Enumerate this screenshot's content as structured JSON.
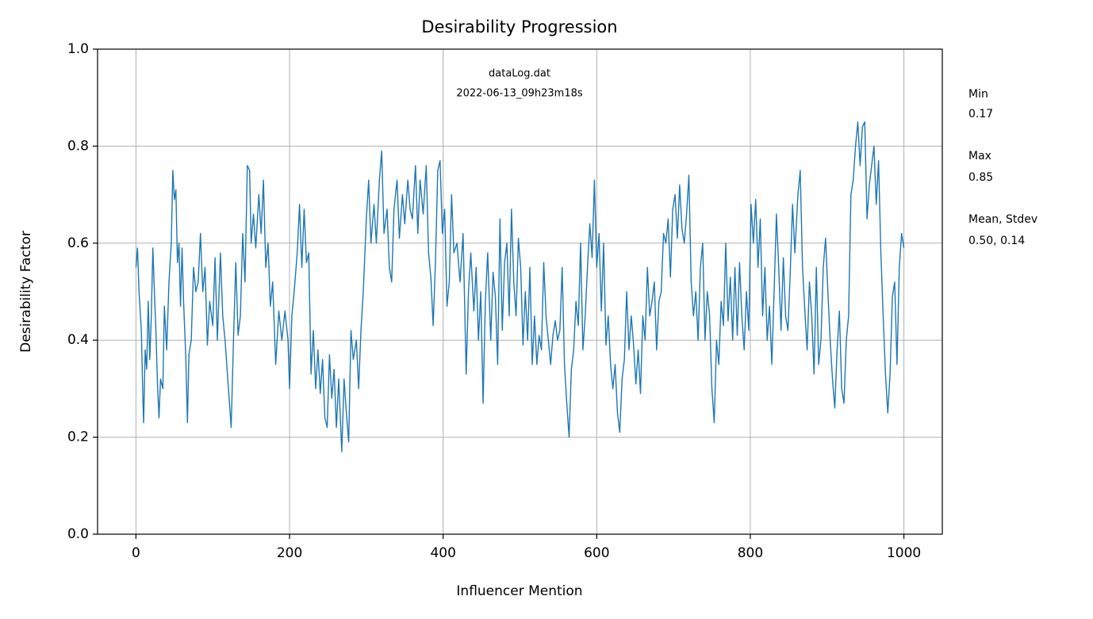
{
  "chart_data": {
    "type": "line",
    "title": "Desirability Progression",
    "xlabel": "Influencer Mention",
    "ylabel": "Desirability Factor",
    "annotations": [
      "dataLog.dat",
      "2022-06-13_09h23m18s"
    ],
    "side_notes": [
      "Min",
      "0.17",
      "Max",
      "0.85",
      "Mean, Stdev",
      "0.50, 0.14"
    ],
    "color": "#1f77b4",
    "grid": true,
    "xlim": [
      -50,
      1050
    ],
    "ylim": [
      0,
      1
    ],
    "xticks": [
      0,
      200,
      400,
      600,
      800,
      1000
    ],
    "yticks": [
      {
        "value": 0,
        "label": "0.0"
      },
      0.2,
      0.4,
      0.6,
      0.8,
      {
        "value": 1,
        "label": "1.0"
      }
    ],
    "x": [
      0,
      2,
      4,
      7,
      9,
      10,
      12,
      14,
      16,
      18,
      20,
      22,
      24,
      26,
      28,
      30,
      32,
      35,
      37,
      40,
      43,
      46,
      48,
      50,
      52,
      54,
      56,
      58,
      60,
      62,
      65,
      67,
      69,
      72,
      75,
      78,
      81,
      84,
      87,
      90,
      93,
      96,
      100,
      103,
      106,
      110,
      113,
      116,
      120,
      124,
      127,
      130,
      133,
      136,
      139,
      142,
      145,
      148,
      150,
      153,
      156,
      160,
      163,
      166,
      169,
      172,
      175,
      178,
      182,
      186,
      190,
      194,
      198,
      200,
      203,
      206,
      210,
      213,
      216,
      219,
      222,
      225,
      228,
      231,
      234,
      237,
      240,
      243,
      246,
      249,
      252,
      255,
      258,
      261,
      264,
      268,
      271,
      274,
      277,
      280,
      283,
      287,
      290,
      293,
      296,
      300,
      303,
      306,
      310,
      313,
      317,
      320,
      323,
      327,
      330,
      333,
      336,
      340,
      343,
      347,
      350,
      354,
      357,
      360,
      364,
      367,
      370,
      374,
      378,
      381,
      384,
      387,
      390,
      393,
      396,
      399,
      402,
      405,
      408,
      411,
      414,
      418,
      422,
      426,
      430,
      433,
      436,
      440,
      443,
      446,
      449,
      452,
      455,
      458,
      462,
      465,
      468,
      471,
      474,
      477,
      480,
      483,
      486,
      489,
      492,
      495,
      498,
      501,
      504,
      507,
      510,
      513,
      516,
      519,
      522,
      525,
      528,
      531,
      534,
      537,
      540,
      543,
      546,
      549,
      552,
      555,
      558,
      561,
      564,
      567,
      570,
      573,
      576,
      579,
      582,
      585,
      588,
      591,
      594,
      597,
      600,
      603,
      606,
      609,
      612,
      615,
      618,
      621,
      624,
      627,
      630,
      633,
      636,
      639,
      642,
      645,
      648,
      651,
      654,
      657,
      660,
      663,
      666,
      669,
      672,
      675,
      678,
      681,
      684,
      687,
      690,
      693,
      696,
      699,
      702,
      705,
      708,
      711,
      714,
      717,
      720,
      723,
      726,
      729,
      732,
      735,
      738,
      741,
      744,
      747,
      750,
      753,
      756,
      759,
      762,
      765,
      768,
      771,
      774,
      777,
      780,
      783,
      786,
      789,
      792,
      795,
      798,
      801,
      804,
      807,
      810,
      813,
      816,
      819,
      822,
      825,
      828,
      831,
      834,
      837,
      840,
      843,
      846,
      849,
      852,
      855,
      858,
      862,
      865,
      868,
      871,
      874,
      877,
      880,
      883,
      886,
      889,
      892,
      895,
      898,
      901,
      904,
      907,
      910,
      913,
      916,
      919,
      922,
      925,
      928,
      931,
      934,
      937,
      940,
      943,
      946,
      949,
      952,
      955,
      958,
      961,
      964,
      967,
      970,
      973,
      976,
      979,
      982,
      985,
      988,
      991,
      994,
      997,
      1000
    ],
    "values": [
      0.55,
      0.59,
      0.5,
      0.42,
      0.28,
      0.23,
      0.38,
      0.34,
      0.48,
      0.36,
      0.45,
      0.59,
      0.5,
      0.42,
      0.31,
      0.24,
      0.32,
      0.3,
      0.47,
      0.38,
      0.52,
      0.6,
      0.75,
      0.69,
      0.71,
      0.56,
      0.6,
      0.47,
      0.59,
      0.48,
      0.36,
      0.23,
      0.37,
      0.4,
      0.55,
      0.5,
      0.52,
      0.62,
      0.5,
      0.55,
      0.39,
      0.48,
      0.43,
      0.57,
      0.4,
      0.58,
      0.45,
      0.4,
      0.31,
      0.22,
      0.4,
      0.56,
      0.41,
      0.45,
      0.62,
      0.52,
      0.76,
      0.75,
      0.6,
      0.66,
      0.59,
      0.7,
      0.62,
      0.73,
      0.55,
      0.6,
      0.47,
      0.52,
      0.35,
      0.46,
      0.4,
      0.46,
      0.4,
      0.3,
      0.45,
      0.5,
      0.58,
      0.68,
      0.55,
      0.67,
      0.56,
      0.58,
      0.33,
      0.42,
      0.3,
      0.38,
      0.29,
      0.36,
      0.24,
      0.22,
      0.37,
      0.28,
      0.34,
      0.22,
      0.32,
      0.17,
      0.32,
      0.25,
      0.19,
      0.42,
      0.36,
      0.4,
      0.3,
      0.42,
      0.5,
      0.65,
      0.73,
      0.6,
      0.68,
      0.6,
      0.73,
      0.79,
      0.62,
      0.67,
      0.55,
      0.52,
      0.67,
      0.73,
      0.61,
      0.7,
      0.64,
      0.73,
      0.67,
      0.65,
      0.76,
      0.62,
      0.73,
      0.66,
      0.76,
      0.58,
      0.53,
      0.43,
      0.56,
      0.75,
      0.77,
      0.62,
      0.67,
      0.47,
      0.52,
      0.7,
      0.58,
      0.6,
      0.52,
      0.62,
      0.33,
      0.5,
      0.58,
      0.46,
      0.55,
      0.4,
      0.5,
      0.27,
      0.48,
      0.58,
      0.4,
      0.54,
      0.49,
      0.35,
      0.65,
      0.42,
      0.56,
      0.6,
      0.45,
      0.67,
      0.52,
      0.45,
      0.61,
      0.55,
      0.39,
      0.5,
      0.4,
      0.55,
      0.35,
      0.45,
      0.35,
      0.41,
      0.38,
      0.56,
      0.45,
      0.4,
      0.35,
      0.41,
      0.44,
      0.4,
      0.42,
      0.55,
      0.35,
      0.27,
      0.2,
      0.34,
      0.38,
      0.48,
      0.43,
      0.6,
      0.38,
      0.45,
      0.55,
      0.64,
      0.57,
      0.73,
      0.55,
      0.62,
      0.46,
      0.6,
      0.39,
      0.45,
      0.35,
      0.3,
      0.35,
      0.25,
      0.21,
      0.32,
      0.36,
      0.5,
      0.38,
      0.45,
      0.39,
      0.31,
      0.38,
      0.29,
      0.45,
      0.4,
      0.55,
      0.45,
      0.48,
      0.52,
      0.38,
      0.48,
      0.5,
      0.62,
      0.6,
      0.65,
      0.53,
      0.67,
      0.7,
      0.61,
      0.72,
      0.63,
      0.6,
      0.66,
      0.74,
      0.52,
      0.45,
      0.5,
      0.4,
      0.55,
      0.6,
      0.4,
      0.5,
      0.45,
      0.3,
      0.23,
      0.4,
      0.35,
      0.48,
      0.43,
      0.6,
      0.44,
      0.53,
      0.4,
      0.55,
      0.41,
      0.56,
      0.45,
      0.38,
      0.5,
      0.42,
      0.68,
      0.6,
      0.69,
      0.55,
      0.65,
      0.45,
      0.55,
      0.4,
      0.47,
      0.35,
      0.5,
      0.66,
      0.55,
      0.42,
      0.57,
      0.45,
      0.42,
      0.54,
      0.68,
      0.58,
      0.7,
      0.75,
      0.55,
      0.46,
      0.38,
      0.52,
      0.45,
      0.33,
      0.55,
      0.35,
      0.4,
      0.55,
      0.61,
      0.5,
      0.4,
      0.32,
      0.26,
      0.38,
      0.46,
      0.3,
      0.27,
      0.4,
      0.45,
      0.7,
      0.73,
      0.8,
      0.85,
      0.76,
      0.84,
      0.85,
      0.65,
      0.72,
      0.76,
      0.8,
      0.68,
      0.77,
      0.58,
      0.45,
      0.33,
      0.25,
      0.33,
      0.49,
      0.52,
      0.35,
      0.55,
      0.62,
      0.59
    ]
  }
}
